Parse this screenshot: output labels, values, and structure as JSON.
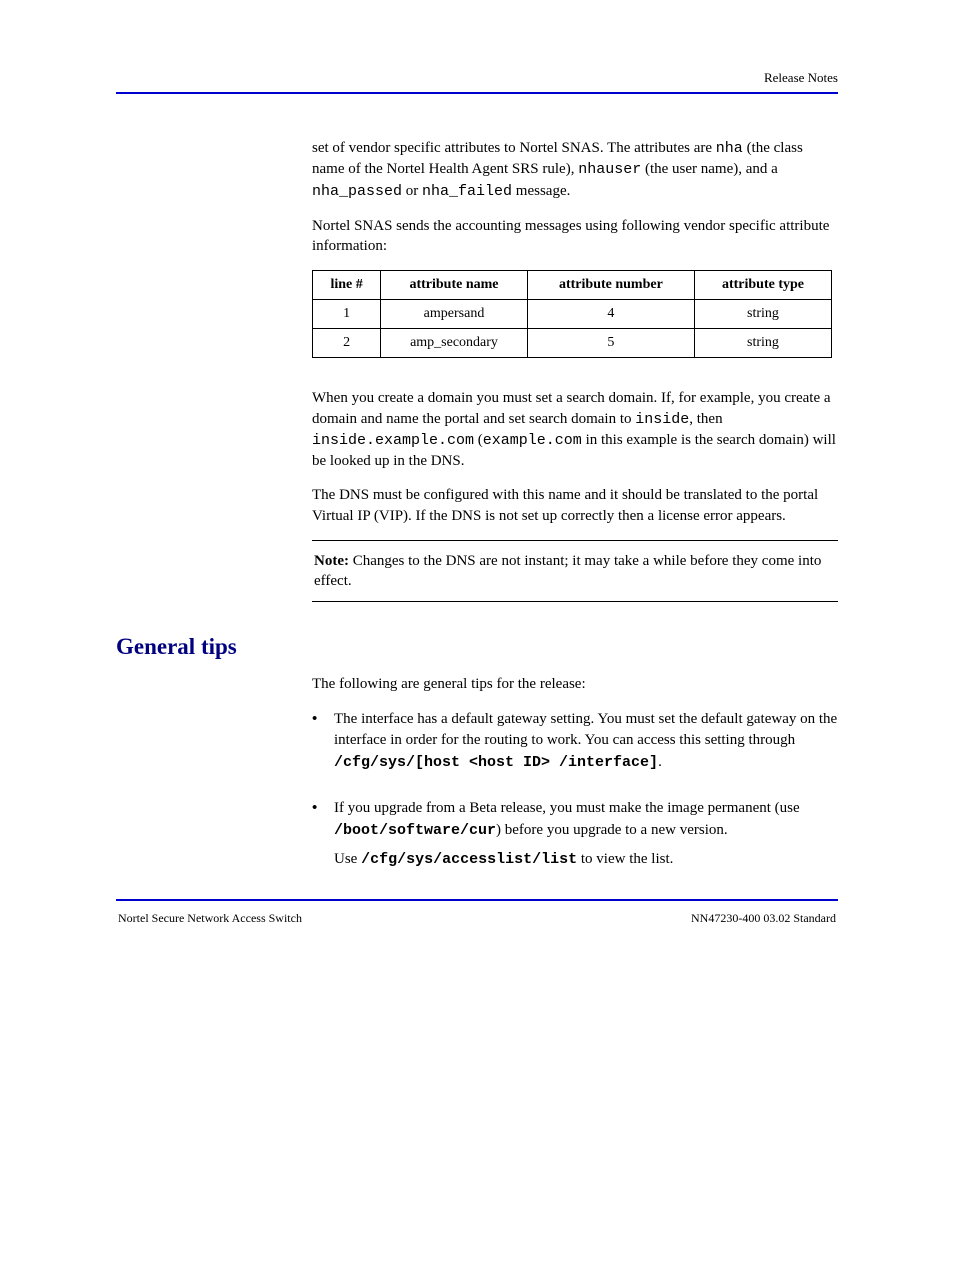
{
  "header": {
    "right": "Release Notes"
  },
  "intro": {
    "p1_parts": [
      "set of vendor specific attributes to Nortel SNAS. The attributes are ",
      " (the class name of the Nortel Health Agent SRS rule), ",
      " (the user name), and a ",
      " or ",
      " message."
    ],
    "nha": "nha",
    "nhauser": "nhauser",
    "nha_passed": "nha_passed",
    "nha_failed": "nha_failed",
    "p2": "Nortel SNAS sends the accounting messages using following vendor specific attribute information:"
  },
  "table": {
    "headers": [
      "line #",
      "attribute name",
      "attribute number",
      "attribute type"
    ],
    "rows": [
      [
        "1",
        "ampersand",
        "4",
        "string"
      ],
      [
        "2",
        "amp_secondary",
        "5",
        "string"
      ]
    ]
  },
  "dns": {
    "p1_pre": "When you create a domain you must set a search domain. If, for example, you create a domain and name the portal and set search domain to ",
    "inside": "inside",
    "p1_mid": ", then ",
    "inside_example": "inside.example.com",
    "p1_mid2": " (",
    "example_com": "example.com",
    "p1_post": " in this example is the search domain) will be looked up in the DNS.",
    "p2": "The DNS must be configured with this name and it should be translated to the portal Virtual IP (VIP). If the DNS is not set up correctly then a license error appears."
  },
  "note": {
    "label": "Note: ",
    "text": "Changes to the DNS are not instant; it may take a while before they come into effect."
  },
  "section": {
    "title": "General tips",
    "lead": "The following are general tips for the release:",
    "items": [
      {
        "bullet": "•",
        "p1_pre": "The interface has a default gateway setting. You must set the default gateway on the interface in order for the routing to work. You can access this setting through ",
        "code1": "/cfg/sys/[host <host ID> /interface]",
        "p1_post": "."
      },
      {
        "bullet": "•",
        "p1_pre": "If you upgrade from a Beta release, you must make the image permanent (use ",
        "code1": "/boot/software/cur",
        "p1_mid": ") before you upgrade to a new version.",
        "p2_pre": "Use ",
        "code2": "/cfg/sys/accesslist/list",
        "p2_post": " to view the list."
      }
    ]
  },
  "footer": {
    "left": "Nortel Secure Network Access Switch",
    "right": "NN47230-400 03.02 Standard"
  }
}
